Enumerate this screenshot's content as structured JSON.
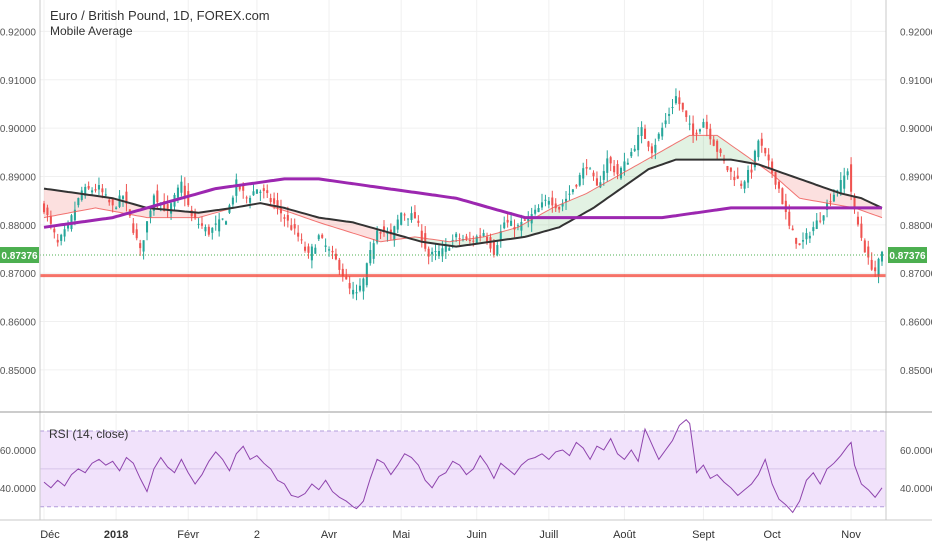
{
  "header": {
    "title": "Euro / British Pound, 1D, FOREX.com",
    "indicator": "Mobile Average"
  },
  "rsi": {
    "title": "RSI (14, close)"
  },
  "price_label": "0.87376",
  "colors": {
    "up": "#26a69a",
    "down": "#ef5350",
    "sma_short": "#333333",
    "sma_long": "#9c27b0",
    "support": "#f44336",
    "rsi_line": "#8e44ad",
    "rsi_band": "#f1e2fb",
    "last_price": "#4caf50"
  },
  "chart_data": [
    {
      "type": "candlestick",
      "title": "Euro / British Pound, 1D, FOREX.com",
      "x_tick_labels": [
        "Déc",
        "2018",
        "Févr",
        "2",
        "Avr",
        "Mai",
        "Juin",
        "Juill",
        "Août",
        "Sept",
        "Oct",
        "Nov"
      ],
      "y_tick_labels": [
        "0.92000",
        "0.91000",
        "0.90000",
        "0.89000",
        "0.88000",
        "0.87000",
        "0.86000",
        "0.85000"
      ],
      "ylim": [
        0.8415,
        0.9265
      ],
      "last_price": 0.87376,
      "support_level": 0.8695,
      "months": [
        {
          "label": "Déc",
          "index": 0
        },
        {
          "label": "2018",
          "index": 21
        },
        {
          "label": "Févr",
          "index": 42
        },
        {
          "label": "2",
          "index": 62
        },
        {
          "label": "Avr",
          "index": 83
        },
        {
          "label": "Mai",
          "index": 104
        },
        {
          "label": "Juin",
          "index": 126
        },
        {
          "label": "Juill",
          "index": 147
        },
        {
          "label": "Août",
          "index": 169
        },
        {
          "label": "Sept",
          "index": 192
        },
        {
          "label": "Oct",
          "index": 212
        },
        {
          "label": "Nov",
          "index": 235
        }
      ],
      "close_anchors": [
        [
          0,
          0.8835
        ],
        [
          4,
          0.876
        ],
        [
          7,
          0.8795
        ],
        [
          11,
          0.887
        ],
        [
          16,
          0.8875
        ],
        [
          20,
          0.8835
        ],
        [
          23,
          0.886
        ],
        [
          28,
          0.8745
        ],
        [
          32,
          0.8865
        ],
        [
          36,
          0.8825
        ],
        [
          40,
          0.8885
        ],
        [
          43,
          0.8815
        ],
        [
          48,
          0.8785
        ],
        [
          53,
          0.8815
        ],
        [
          56,
          0.8885
        ],
        [
          59,
          0.8855
        ],
        [
          62,
          0.8875
        ],
        [
          64,
          0.8865
        ],
        [
          68,
          0.8835
        ],
        [
          71,
          0.8805
        ],
        [
          74,
          0.8775
        ],
        [
          77,
          0.8735
        ],
        [
          80,
          0.8775
        ],
        [
          83,
          0.8745
        ],
        [
          86,
          0.8715
        ],
        [
          89,
          0.8665
        ],
        [
          91,
          0.8655
        ],
        [
          93,
          0.8685
        ],
        [
          97,
          0.8795
        ],
        [
          101,
          0.8775
        ],
        [
          104,
          0.8825
        ],
        [
          108,
          0.8815
        ],
        [
          112,
          0.8735
        ],
        [
          116,
          0.8745
        ],
        [
          120,
          0.8775
        ],
        [
          124,
          0.8765
        ],
        [
          128,
          0.8785
        ],
        [
          131,
          0.8745
        ],
        [
          134,
          0.8805
        ],
        [
          138,
          0.8795
        ],
        [
          143,
          0.8825
        ],
        [
          147,
          0.8855
        ],
        [
          150,
          0.8835
        ],
        [
          154,
          0.8875
        ],
        [
          158,
          0.8925
        ],
        [
          161,
          0.8875
        ],
        [
          164,
          0.8935
        ],
        [
          167,
          0.8905
        ],
        [
          170,
          0.8935
        ],
        [
          174,
          0.8995
        ],
        [
          177,
          0.8955
        ],
        [
          181,
          0.9015
        ],
        [
          184,
          0.9065
        ],
        [
          186,
          0.9035
        ],
        [
          189,
          0.8985
        ],
        [
          192,
          0.9015
        ],
        [
          196,
          0.8955
        ],
        [
          199,
          0.8915
        ],
        [
          203,
          0.8885
        ],
        [
          206,
          0.8915
        ],
        [
          208,
          0.8975
        ],
        [
          211,
          0.8925
        ],
        [
          214,
          0.8875
        ],
        [
          217,
          0.8795
        ],
        [
          220,
          0.8755
        ],
        [
          223,
          0.8785
        ],
        [
          226,
          0.8815
        ],
        [
          229,
          0.8855
        ],
        [
          232,
          0.8885
        ],
        [
          234,
          0.8915
        ],
        [
          236,
          0.8825
        ],
        [
          238,
          0.8775
        ],
        [
          240,
          0.8725
        ],
        [
          242,
          0.8705
        ],
        [
          244,
          0.8738
        ]
      ],
      "sma_short_anchors": [
        [
          0,
          0.8815
        ],
        [
          15,
          0.8835
        ],
        [
          30,
          0.8815
        ],
        [
          45,
          0.8815
        ],
        [
          55,
          0.8835
        ],
        [
          63,
          0.8845
        ],
        [
          72,
          0.8825
        ],
        [
          80,
          0.8805
        ],
        [
          89,
          0.8785
        ],
        [
          98,
          0.8765
        ],
        [
          108,
          0.8775
        ],
        [
          118,
          0.8765
        ],
        [
          128,
          0.8775
        ],
        [
          138,
          0.8795
        ],
        [
          148,
          0.8835
        ],
        [
          158,
          0.8865
        ],
        [
          168,
          0.8905
        ],
        [
          178,
          0.8945
        ],
        [
          188,
          0.8985
        ],
        [
          196,
          0.8985
        ],
        [
          204,
          0.8945
        ],
        [
          212,
          0.8905
        ],
        [
          220,
          0.8855
        ],
        [
          228,
          0.8845
        ],
        [
          236,
          0.8835
        ],
        [
          244,
          0.8815
        ]
      ],
      "sma_mid_anchors": [
        [
          0,
          0.8875
        ],
        [
          10,
          0.8865
        ],
        [
          20,
          0.8855
        ],
        [
          30,
          0.8835
        ],
        [
          45,
          0.8825
        ],
        [
          55,
          0.8835
        ],
        [
          63,
          0.8845
        ],
        [
          70,
          0.8835
        ],
        [
          80,
          0.8815
        ],
        [
          90,
          0.8805
        ],
        [
          100,
          0.8785
        ],
        [
          110,
          0.8765
        ],
        [
          120,
          0.8755
        ],
        [
          130,
          0.8765
        ],
        [
          140,
          0.8775
        ],
        [
          150,
          0.8795
        ],
        [
          160,
          0.8835
        ],
        [
          168,
          0.8875
        ],
        [
          176,
          0.8915
        ],
        [
          184,
          0.8935
        ],
        [
          192,
          0.8935
        ],
        [
          200,
          0.8935
        ],
        [
          208,
          0.8925
        ],
        [
          216,
          0.8905
        ],
        [
          224,
          0.8885
        ],
        [
          232,
          0.8865
        ],
        [
          238,
          0.8855
        ],
        [
          244,
          0.8835
        ]
      ],
      "sma_long_anchors": [
        [
          0,
          0.8795
        ],
        [
          10,
          0.8805
        ],
        [
          20,
          0.8815
        ],
        [
          30,
          0.8835
        ],
        [
          40,
          0.8855
        ],
        [
          50,
          0.8875
        ],
        [
          60,
          0.8885
        ],
        [
          70,
          0.8895
        ],
        [
          80,
          0.8895
        ],
        [
          90,
          0.8885
        ],
        [
          100,
          0.8875
        ],
        [
          110,
          0.8865
        ],
        [
          120,
          0.8855
        ],
        [
          130,
          0.8835
        ],
        [
          140,
          0.8815
        ],
        [
          150,
          0.8815
        ],
        [
          160,
          0.8815
        ],
        [
          170,
          0.8815
        ],
        [
          180,
          0.8815
        ],
        [
          190,
          0.8825
        ],
        [
          200,
          0.8835
        ],
        [
          210,
          0.8835
        ],
        [
          220,
          0.8835
        ],
        [
          230,
          0.8835
        ],
        [
          244,
          0.8835
        ]
      ]
    },
    {
      "type": "line",
      "title": "RSI (14, close)",
      "y_tick_labels": [
        "60.0000",
        "40.0000"
      ],
      "ylim": [
        23,
        79
      ],
      "band": [
        30,
        70
      ],
      "midline": 50,
      "anchors": [
        [
          0,
          43
        ],
        [
          2,
          40
        ],
        [
          4,
          44
        ],
        [
          6,
          41
        ],
        [
          8,
          47
        ],
        [
          10,
          50
        ],
        [
          12,
          48
        ],
        [
          14,
          53
        ],
        [
          16,
          55
        ],
        [
          18,
          52
        ],
        [
          20,
          54
        ],
        [
          22,
          49
        ],
        [
          24,
          56
        ],
        [
          26,
          53
        ],
        [
          28,
          45
        ],
        [
          30,
          38
        ],
        [
          32,
          50
        ],
        [
          34,
          56
        ],
        [
          36,
          51
        ],
        [
          38,
          48
        ],
        [
          40,
          55
        ],
        [
          42,
          48
        ],
        [
          44,
          42
        ],
        [
          46,
          47
        ],
        [
          48,
          54
        ],
        [
          50,
          59
        ],
        [
          52,
          55
        ],
        [
          54,
          49
        ],
        [
          56,
          58
        ],
        [
          58,
          62
        ],
        [
          60,
          55
        ],
        [
          62,
          57
        ],
        [
          64,
          53
        ],
        [
          66,
          50
        ],
        [
          68,
          44
        ],
        [
          70,
          42
        ],
        [
          72,
          36
        ],
        [
          74,
          35
        ],
        [
          76,
          37
        ],
        [
          78,
          42
        ],
        [
          80,
          39
        ],
        [
          82,
          44
        ],
        [
          84,
          38
        ],
        [
          86,
          35
        ],
        [
          88,
          33
        ],
        [
          90,
          30
        ],
        [
          91,
          29
        ],
        [
          93,
          33
        ],
        [
          95,
          45
        ],
        [
          97,
          55
        ],
        [
          99,
          53
        ],
        [
          101,
          47
        ],
        [
          103,
          52
        ],
        [
          105,
          58
        ],
        [
          107,
          56
        ],
        [
          109,
          52
        ],
        [
          111,
          44
        ],
        [
          113,
          40
        ],
        [
          115,
          46
        ],
        [
          117,
          48
        ],
        [
          119,
          54
        ],
        [
          121,
          52
        ],
        [
          123,
          47
        ],
        [
          125,
          50
        ],
        [
          127,
          57
        ],
        [
          129,
          52
        ],
        [
          131,
          45
        ],
        [
          133,
          53
        ],
        [
          135,
          50
        ],
        [
          137,
          47
        ],
        [
          139,
          52
        ],
        [
          141,
          55
        ],
        [
          143,
          56
        ],
        [
          145,
          58
        ],
        [
          147,
          55
        ],
        [
          149,
          59
        ],
        [
          151,
          60
        ],
        [
          153,
          57
        ],
        [
          155,
          64
        ],
        [
          157,
          61
        ],
        [
          159,
          55
        ],
        [
          161,
          62
        ],
        [
          163,
          60
        ],
        [
          165,
          66
        ],
        [
          167,
          58
        ],
        [
          169,
          55
        ],
        [
          171,
          60
        ],
        [
          173,
          54
        ],
        [
          175,
          71
        ],
        [
          177,
          63
        ],
        [
          179,
          55
        ],
        [
          181,
          60
        ],
        [
          183,
          65
        ],
        [
          185,
          73
        ],
        [
          187,
          76
        ],
        [
          188,
          74
        ],
        [
          190,
          48
        ],
        [
          192,
          52
        ],
        [
          194,
          45
        ],
        [
          196,
          47
        ],
        [
          198,
          43
        ],
        [
          200,
          40
        ],
        [
          202,
          36
        ],
        [
          204,
          39
        ],
        [
          206,
          42
        ],
        [
          208,
          47
        ],
        [
          210,
          55
        ],
        [
          212,
          42
        ],
        [
          214,
          34
        ],
        [
          216,
          31
        ],
        [
          218,
          27
        ],
        [
          220,
          33
        ],
        [
          222,
          44
        ],
        [
          224,
          48
        ],
        [
          226,
          42
        ],
        [
          228,
          50
        ],
        [
          230,
          53
        ],
        [
          232,
          57
        ],
        [
          234,
          62
        ],
        [
          235,
          64
        ],
        [
          236,
          52
        ],
        [
          238,
          42
        ],
        [
          240,
          39
        ],
        [
          242,
          35
        ],
        [
          244,
          40
        ]
      ]
    }
  ]
}
